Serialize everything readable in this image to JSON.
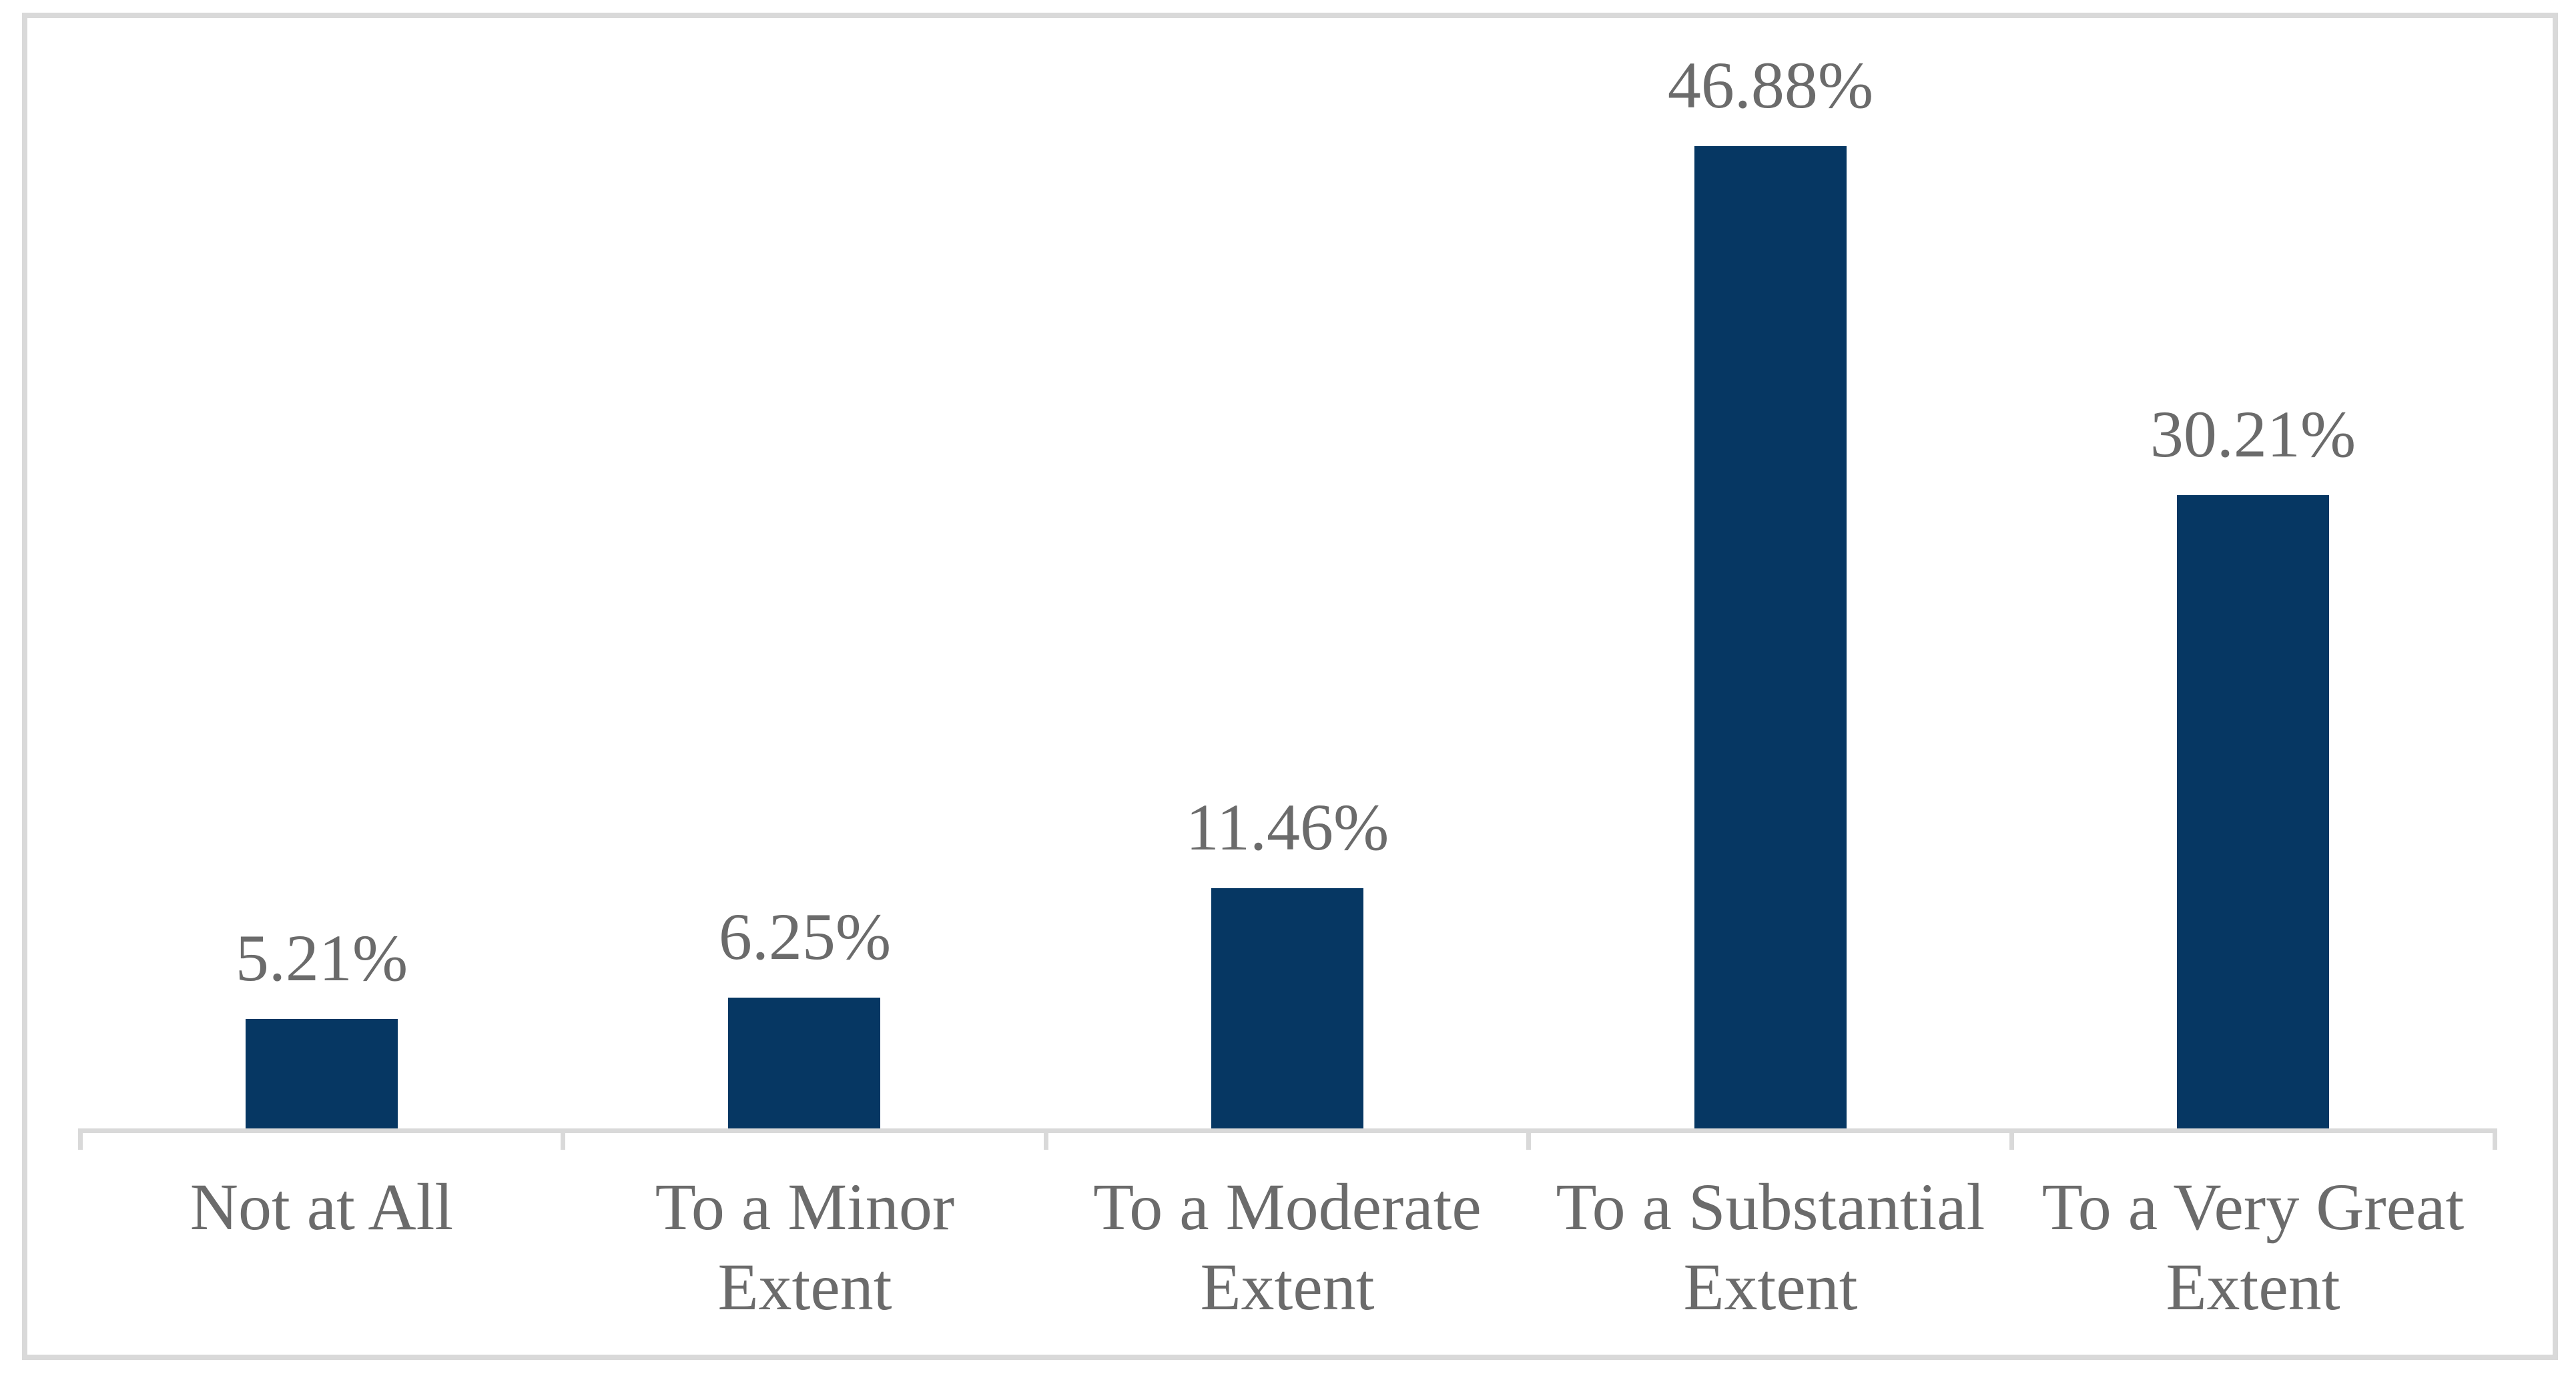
{
  "chart_data": {
    "type": "bar",
    "title": "",
    "xlabel": "",
    "ylabel": "",
    "categories": [
      "Not at All",
      "To a Minor Extent",
      "To a Moderate Extent",
      "To a Substantial Extent",
      "To a Very Great Extent"
    ],
    "category_label_lines": [
      [
        "Not at All"
      ],
      [
        "To a Minor",
        "Extent"
      ],
      [
        "To a Moderate",
        "Extent"
      ],
      [
        "To a Substantial",
        "Extent"
      ],
      [
        "To a Very Great",
        "Extent"
      ]
    ],
    "values": [
      5.21,
      6.25,
      11.46,
      46.88,
      30.21
    ],
    "data_labels": [
      "5.21%",
      "6.25%",
      "11.46%",
      "46.88%",
      "30.21%"
    ],
    "ylim": [
      0,
      50
    ],
    "grid": false,
    "legend": false,
    "axis_ticks": "outside, at category boundaries",
    "colors": {
      "bar": "#063763",
      "text": "#6b6b6b",
      "axis": "#d9d9d9",
      "frame_border": "#d9d9d9",
      "background": "#ffffff"
    }
  }
}
